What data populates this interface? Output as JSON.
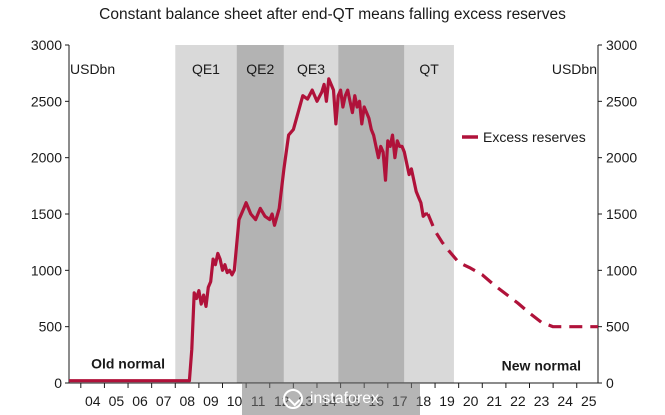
{
  "chart_data": {
    "type": "line",
    "title": "Constant balance sheet after end-QT means falling excess reserves",
    "unit_left": "USDbn",
    "unit_right": "USDbn",
    "ylim": [
      0,
      3000
    ],
    "yticks": [
      0,
      500,
      1000,
      1500,
      2000,
      2500,
      3000
    ],
    "xlim": [
      2003.5,
      2025.9
    ],
    "xticks": [
      "04",
      "05",
      "06",
      "07",
      "08",
      "09",
      "10",
      "11",
      "12",
      "13",
      "14",
      "15",
      "16",
      "17",
      "18",
      "19",
      "20",
      "21",
      "22",
      "23",
      "24",
      "25"
    ],
    "xtick_years": [
      2004,
      2005,
      2006,
      2007,
      2008,
      2009,
      2010,
      2011,
      2012,
      2013,
      2014,
      2015,
      2016,
      2017,
      2018,
      2019,
      2020,
      2021,
      2022,
      2023,
      2024,
      2025
    ],
    "bands": [
      {
        "label": "QE1",
        "start": 2008.0,
        "end": 2010.6,
        "color": "#d9d9d9"
      },
      {
        "label": "QE2",
        "start": 2010.6,
        "end": 2012.6,
        "color": "#b3b3b3"
      },
      {
        "label": "QE3",
        "start": 2012.6,
        "end": 2014.9,
        "color": "#d9d9d9"
      },
      {
        "label": "",
        "start": 2014.9,
        "end": 2017.7,
        "color": "#b3b3b3"
      },
      {
        "label": "QT",
        "start": 2017.7,
        "end": 2019.8,
        "color": "#d9d9d9"
      }
    ],
    "annotations": [
      {
        "text": "Old normal",
        "x": 2006.0,
        "y": 130
      },
      {
        "text": "New normal",
        "x": 2023.5,
        "y": 110
      }
    ],
    "series": [
      {
        "name": "Excess reserves",
        "color": "#b0123a",
        "style": "solid",
        "x": [
          2003.5,
          2008.6,
          2008.7,
          2008.8,
          2008.9,
          2009.0,
          2009.1,
          2009.2,
          2009.3,
          2009.4,
          2009.5,
          2009.6,
          2009.7,
          2009.8,
          2009.9,
          2010.0,
          2010.1,
          2010.2,
          2010.3,
          2010.4,
          2010.5,
          2010.7,
          2010.9,
          2011.0,
          2011.2,
          2011.4,
          2011.6,
          2011.8,
          2012.0,
          2012.1,
          2012.2,
          2012.4,
          2012.6,
          2012.8,
          2013.0,
          2013.2,
          2013.4,
          2013.6,
          2013.8,
          2014.0,
          2014.2,
          2014.3,
          2014.4,
          2014.5,
          2014.6,
          2014.7,
          2014.8,
          2014.9,
          2015.0,
          2015.1,
          2015.2,
          2015.3,
          2015.4,
          2015.5,
          2015.6,
          2015.7,
          2015.8,
          2015.9,
          2016.0,
          2016.1,
          2016.2,
          2016.3,
          2016.4,
          2016.5,
          2016.6,
          2016.7,
          2016.8,
          2016.9,
          2017.0,
          2017.1,
          2017.2,
          2017.3,
          2017.4,
          2017.5,
          2017.6,
          2017.7,
          2017.8,
          2017.9,
          2018.0,
          2018.1,
          2018.2,
          2018.3,
          2018.4,
          2018.5,
          2018.6,
          2018.7
        ],
        "y": [
          20,
          20,
          300,
          800,
          750,
          820,
          700,
          780,
          680,
          850,
          900,
          1100,
          1050,
          1150,
          1100,
          1000,
          1050,
          980,
          1000,
          960,
          1000,
          1450,
          1550,
          1600,
          1500,
          1450,
          1550,
          1480,
          1450,
          1500,
          1400,
          1550,
          1900,
          2200,
          2250,
          2400,
          2550,
          2520,
          2600,
          2500,
          2580,
          2650,
          2500,
          2700,
          2650,
          2600,
          2300,
          2550,
          2600,
          2450,
          2550,
          2600,
          2500,
          2400,
          2550,
          2450,
          2500,
          2300,
          2450,
          2400,
          2350,
          2250,
          2200,
          2100,
          2000,
          2100,
          2050,
          1800,
          2150,
          2100,
          2200,
          2000,
          2150,
          2100,
          2100,
          2050,
          1950,
          1850,
          1900,
          1800,
          1700,
          1650,
          1600,
          1480,
          1500,
          1500
        ]
      },
      {
        "name": "",
        "color": "#b0123a",
        "style": "dashed",
        "x": [
          2018.7,
          2019.0,
          2019.3,
          2019.6,
          2020.0,
          2020.5,
          2021.0,
          2021.5,
          2022.0,
          2022.5,
          2023.0,
          2023.5,
          2024.0,
          2024.5,
          2025.0,
          2025.9
        ],
        "y": [
          1500,
          1350,
          1250,
          1170,
          1070,
          1020,
          960,
          870,
          790,
          710,
          620,
          540,
          500,
          500,
          500,
          500
        ]
      }
    ],
    "legend": {
      "entries": [
        "Excess reserves"
      ],
      "placement": "right"
    }
  },
  "watermark": {
    "text": "instaforex"
  }
}
